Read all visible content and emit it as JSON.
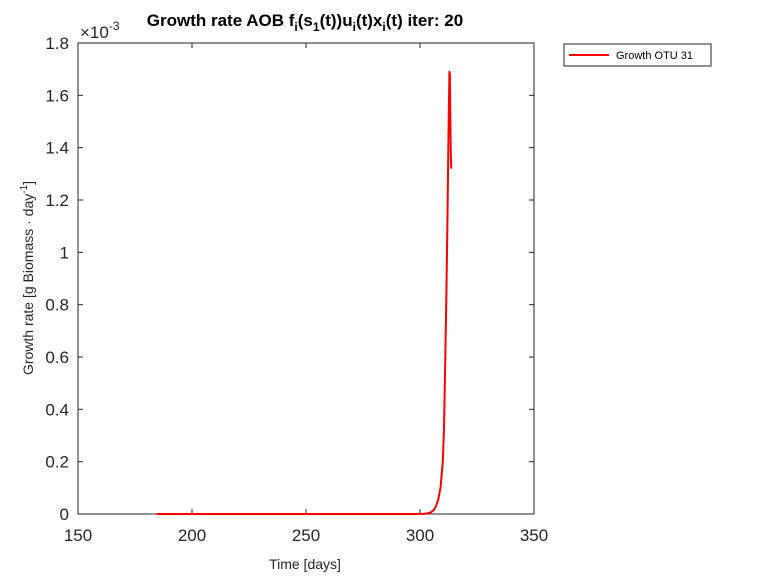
{
  "chart_data": {
    "type": "line",
    "title": {
      "prefix": "Growth rate AOB f",
      "sub1": "i",
      "mid1": "(s",
      "sub2": "1",
      "mid2": "(t))u",
      "sub3": "i",
      "mid3": "(t)x",
      "sub4": "i",
      "suffix": "(t) iter: 20"
    },
    "xlabel": "Time [days]",
    "ylabel": {
      "main": "Growth rate [g Biomass · day",
      "sup": "-1",
      "end": "]"
    },
    "xlim": [
      150,
      350
    ],
    "ylim": [
      0,
      1.8
    ],
    "y_exponent_base": "×10",
    "y_exponent_power": "-3",
    "xticks": [
      150,
      200,
      250,
      300,
      350
    ],
    "yticks": [
      0,
      0.2,
      0.4,
      0.6,
      0.8,
      1,
      1.2,
      1.4,
      1.6,
      1.8
    ],
    "grid": false,
    "legend_position": "outside-top-right",
    "series": [
      {
        "name": "Growth OTU 31",
        "color": "#ff0000",
        "x": [
          184.5,
          200,
          250,
          290,
          298,
          300,
          301,
          302,
          303,
          304,
          305,
          306,
          307,
          308,
          309,
          310,
          310.5,
          311,
          311.5,
          312,
          312.5,
          312.9,
          313.1,
          313.3,
          313.5,
          313.7
        ],
        "y": [
          0,
          0,
          0,
          0,
          0,
          0.0003,
          0.0006,
          0.001,
          0.002,
          0.004,
          0.008,
          0.015,
          0.03,
          0.055,
          0.1,
          0.2,
          0.32,
          0.55,
          0.8,
          1.1,
          1.45,
          1.69,
          1.68,
          1.52,
          1.38,
          1.32
        ]
      }
    ]
  }
}
